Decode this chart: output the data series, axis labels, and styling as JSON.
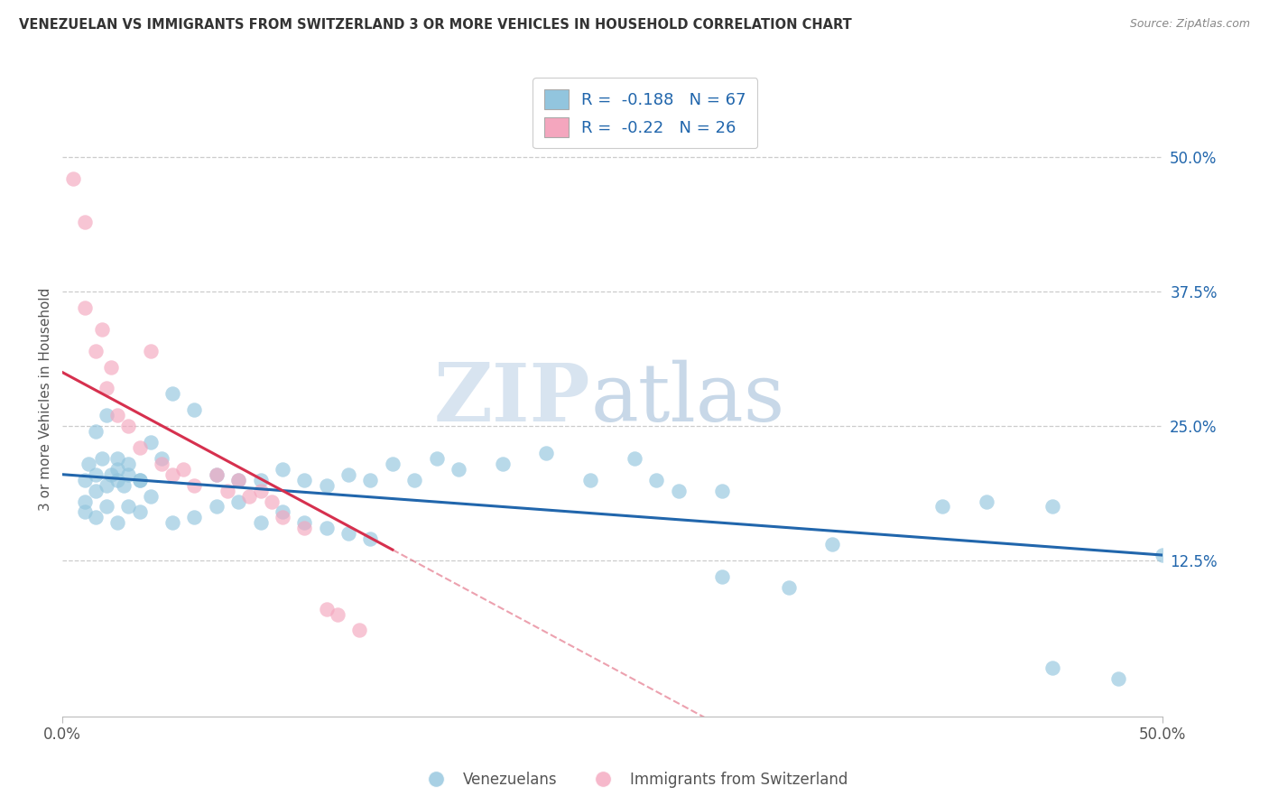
{
  "title": "VENEZUELAN VS IMMIGRANTS FROM SWITZERLAND 3 OR MORE VEHICLES IN HOUSEHOLD CORRELATION CHART",
  "source": "Source: ZipAtlas.com",
  "ylabel": "3 or more Vehicles in Household",
  "ytick_labels": [
    "12.5%",
    "25.0%",
    "37.5%",
    "50.0%"
  ],
  "ytick_values": [
    12.5,
    25.0,
    37.5,
    50.0
  ],
  "xlim": [
    0,
    50
  ],
  "ylim": [
    -2,
    57
  ],
  "blue_R": -0.188,
  "blue_N": 67,
  "pink_R": -0.22,
  "pink_N": 26,
  "blue_color": "#92c5de",
  "pink_color": "#f4a6be",
  "blue_line_color": "#2166ac",
  "pink_line_color": "#d6304e",
  "watermark_zip": "ZIP",
  "watermark_atlas": "atlas",
  "legend_label_blue": "Venezuelans",
  "legend_label_pink": "Immigrants from Switzerland",
  "blue_x": [
    1.0,
    1.5,
    2.5,
    1.0,
    1.5,
    2.0,
    2.5,
    3.0,
    1.2,
    1.8,
    2.2,
    2.8,
    3.5,
    4.0,
    1.5,
    2.0,
    2.5,
    3.0,
    3.5,
    4.5,
    5.0,
    6.0,
    7.0,
    8.0,
    9.0,
    10.0,
    11.0,
    12.0,
    13.0,
    14.0,
    15.0,
    16.0,
    17.0,
    18.0,
    20.0,
    22.0,
    24.0,
    26.0,
    27.0,
    28.0,
    1.0,
    1.5,
    2.0,
    2.5,
    3.0,
    3.5,
    4.0,
    5.0,
    6.0,
    7.0,
    8.0,
    9.0,
    10.0,
    11.0,
    12.0,
    13.0,
    14.0,
    30.0,
    35.0,
    40.0,
    42.0,
    45.0,
    48.0,
    30.0,
    33.0,
    45.0,
    50.0
  ],
  "blue_y": [
    20.0,
    20.5,
    21.0,
    18.0,
    19.0,
    19.5,
    20.0,
    20.5,
    21.5,
    22.0,
    20.5,
    19.5,
    20.0,
    23.5,
    24.5,
    26.0,
    22.0,
    21.5,
    20.0,
    22.0,
    28.0,
    26.5,
    20.5,
    20.0,
    20.0,
    21.0,
    20.0,
    19.5,
    20.5,
    20.0,
    21.5,
    20.0,
    22.0,
    21.0,
    21.5,
    22.5,
    20.0,
    22.0,
    20.0,
    19.0,
    17.0,
    16.5,
    17.5,
    16.0,
    17.5,
    17.0,
    18.5,
    16.0,
    16.5,
    17.5,
    18.0,
    16.0,
    17.0,
    16.0,
    15.5,
    15.0,
    14.5,
    19.0,
    14.0,
    17.5,
    18.0,
    2.5,
    1.5,
    11.0,
    10.0,
    17.5,
    13.0
  ],
  "pink_x": [
    0.5,
    1.0,
    1.0,
    1.5,
    1.8,
    2.0,
    2.2,
    2.5,
    3.0,
    3.5,
    4.0,
    4.5,
    5.0,
    5.5,
    6.0,
    7.0,
    7.5,
    8.0,
    8.5,
    9.0,
    9.5,
    10.0,
    11.0,
    12.0,
    12.5,
    13.5
  ],
  "pink_y": [
    48.0,
    44.0,
    36.0,
    32.0,
    34.0,
    28.5,
    30.5,
    26.0,
    25.0,
    23.0,
    32.0,
    21.5,
    20.5,
    21.0,
    19.5,
    20.5,
    19.0,
    20.0,
    18.5,
    19.0,
    18.0,
    16.5,
    15.5,
    8.0,
    7.5,
    6.0
  ],
  "blue_line_x0": 0,
  "blue_line_y0": 20.5,
  "blue_line_x1": 50,
  "blue_line_y1": 13.0,
  "pink_line_x0": 0,
  "pink_line_y0": 30.0,
  "pink_line_x1": 15,
  "pink_line_y1": 13.5
}
